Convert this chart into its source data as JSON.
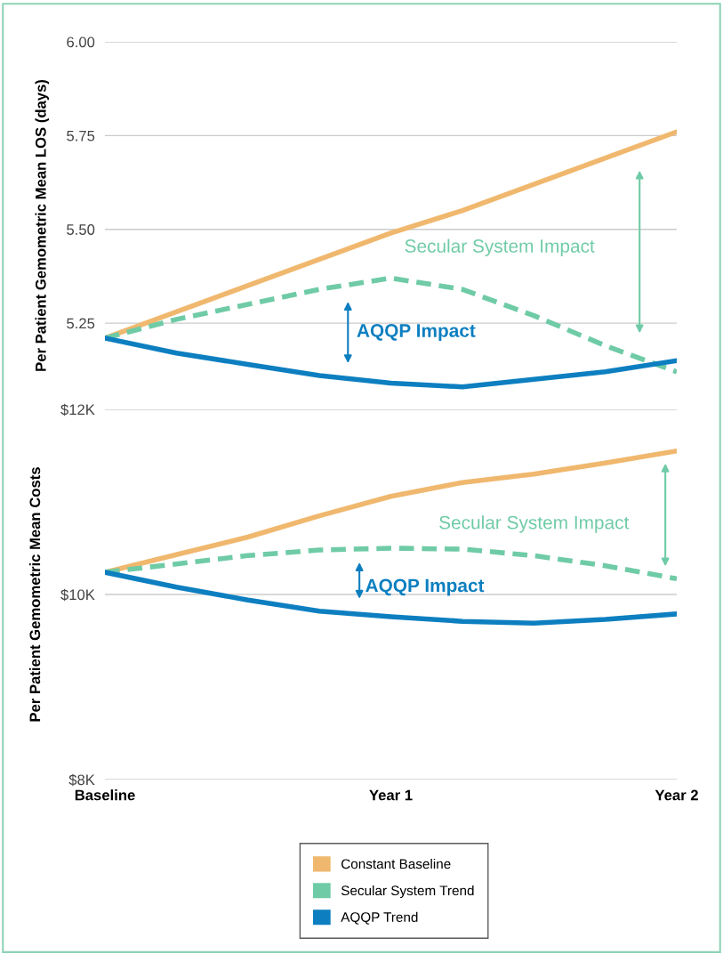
{
  "chart_data": [
    {
      "type": "line",
      "ylabel": "Per Patient Gemometric Mean LOS (days)",
      "categories": [
        null,
        null,
        null,
        null,
        null,
        null,
        null,
        null,
        null
      ],
      "ylim": [
        5.02,
        6.0
      ],
      "yticks": [
        {
          "value": 5.25,
          "label": "5.25"
        },
        {
          "value": 5.5,
          "label": "5.50"
        },
        {
          "value": 5.75,
          "label": "5.75"
        },
        {
          "value": 6.0,
          "label": "6.00"
        }
      ],
      "grid": "y",
      "series": [
        {
          "color": "#f0b86e",
          "values": [
            5.21,
            5.28,
            5.35,
            5.42,
            5.49,
            5.55,
            5.62,
            5.69,
            5.76
          ]
        },
        {
          "color": "#6fcba6",
          "line_style": "dashed",
          "values": [
            5.21,
            5.26,
            5.3,
            5.34,
            5.37,
            5.34,
            5.27,
            5.19,
            5.12
          ]
        },
        {
          "color": "#0d7fc0",
          "values": [
            5.21,
            5.17,
            5.14,
            5.11,
            5.09,
            5.08,
            5.1,
            5.12,
            5.15
          ]
        }
      ],
      "annotations": [
        "AQQP Impact",
        "Secular System Impact"
      ]
    },
    {
      "type": "line",
      "ylabel": "Per Patient Gemometric Mean Costs",
      "categories": [
        "Baseline",
        null,
        null,
        null,
        "Year 1",
        null,
        null,
        null,
        "Year 2"
      ],
      "ylim": [
        8000,
        12000
      ],
      "yticks": [
        {
          "value": 8000,
          "label": "$8K"
        },
        {
          "value": 10000,
          "label": "$10K"
        },
        {
          "value": 12000,
          "label": "$12K"
        }
      ],
      "grid": "y",
      "legend": "bottom",
      "series": [
        {
          "name": "Constant Baseline",
          "color": "#f0b86e",
          "values": [
            10240,
            10430,
            10620,
            10850,
            11060,
            11210,
            11300,
            11420,
            11550
          ]
        },
        {
          "name": "Secular System Trend",
          "color": "#6fcba6",
          "line_style": "dashed",
          "values": [
            10240,
            10330,
            10420,
            10480,
            10500,
            10490,
            10420,
            10310,
            10170
          ]
        },
        {
          "name": "AQQP Trend",
          "color": "#0d7fc0",
          "values": [
            10240,
            10080,
            9940,
            9820,
            9760,
            9710,
            9690,
            9730,
            9790
          ]
        }
      ],
      "annotations": [
        "AQQP Impact",
        "Secular System Impact"
      ]
    }
  ]
}
